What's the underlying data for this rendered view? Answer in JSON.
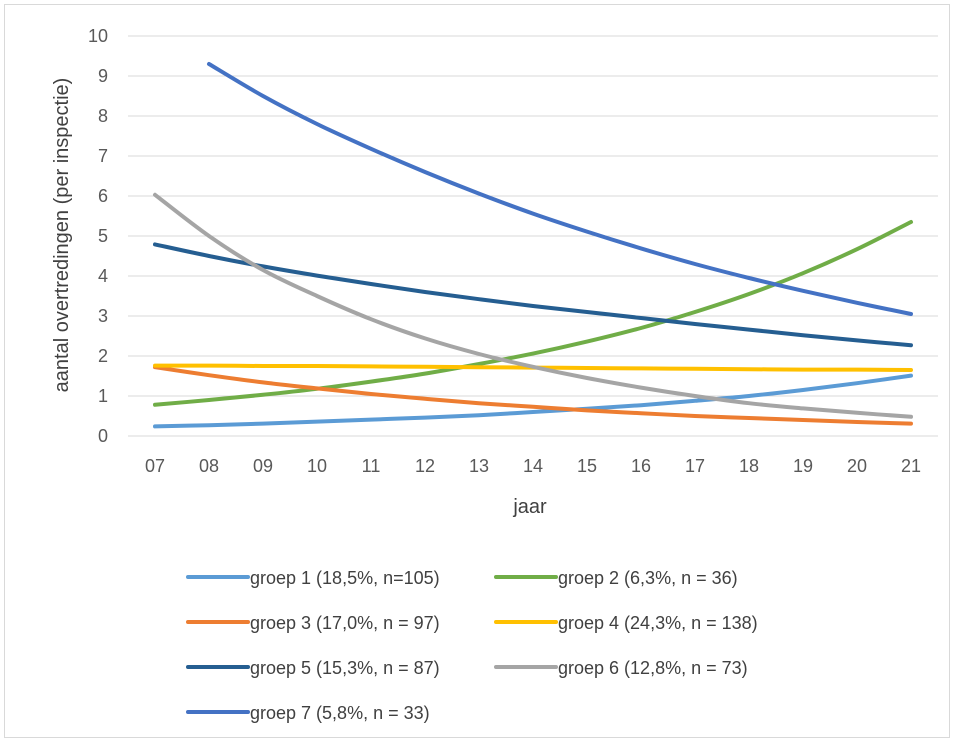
{
  "chart_data": {
    "type": "line",
    "title": "",
    "xlabel": "jaar",
    "ylabel": "aantal overtredingen (per inspectie)",
    "x": [
      "07",
      "08",
      "09",
      "10",
      "11",
      "12",
      "13",
      "14",
      "15",
      "16",
      "17",
      "18",
      "19",
      "20",
      "21"
    ],
    "ylim": [
      0,
      10
    ],
    "yticks": [
      "0",
      "1",
      "2",
      "3",
      "4",
      "5",
      "6",
      "7",
      "8",
      "9",
      "10"
    ],
    "grid": true,
    "legend_position": "bottom",
    "series": [
      {
        "name": "groep 1 (18,5%, n=105)",
        "color": "#5b9bd5",
        "values": [
          0.24,
          0.27,
          0.31,
          0.36,
          0.41,
          0.46,
          0.52,
          0.6,
          0.68,
          0.77,
          0.88,
          1.0,
          1.15,
          1.32,
          1.51
        ]
      },
      {
        "name": "groep 2 (6,3%, n = 36)",
        "color": "#70ad47",
        "values": [
          0.78,
          0.9,
          1.03,
          1.18,
          1.36,
          1.56,
          1.8,
          2.06,
          2.36,
          2.7,
          3.1,
          3.55,
          4.07,
          4.67,
          5.35
        ]
      },
      {
        "name": "groep 3 (17,0%, n = 97)",
        "color": "#ed7d31",
        "values": [
          1.72,
          1.52,
          1.34,
          1.19,
          1.05,
          0.93,
          0.82,
          0.73,
          0.64,
          0.57,
          0.5,
          0.45,
          0.4,
          0.35,
          0.31
        ]
      },
      {
        "name": "groep 4 (24,3%, n = 138)",
        "color": "#ffc000",
        "values": [
          1.76,
          1.76,
          1.75,
          1.75,
          1.74,
          1.73,
          1.72,
          1.71,
          1.7,
          1.69,
          1.68,
          1.67,
          1.66,
          1.66,
          1.65
        ]
      },
      {
        "name": "groep 5 (15,3%, n = 87)",
        "color": "#255e91",
        "values": [
          4.79,
          4.5,
          4.24,
          4.01,
          3.8,
          3.6,
          3.42,
          3.25,
          3.1,
          2.95,
          2.8,
          2.66,
          2.52,
          2.39,
          2.27
        ]
      },
      {
        "name": "groep 6 (12,8%, n = 73)",
        "color": "#a5a5a5",
        "values": [
          6.03,
          5.0,
          4.15,
          3.5,
          2.92,
          2.44,
          2.05,
          1.73,
          1.45,
          1.21,
          1.0,
          0.82,
          0.69,
          0.58,
          0.48
        ]
      },
      {
        "name": "groep 7 (5,8%, n = 33)",
        "color": "#4472c4",
        "values": [
          null,
          9.3,
          8.5,
          7.8,
          7.18,
          6.6,
          6.06,
          5.56,
          5.11,
          4.69,
          4.3,
          3.95,
          3.63,
          3.33,
          3.05
        ]
      }
    ]
  }
}
